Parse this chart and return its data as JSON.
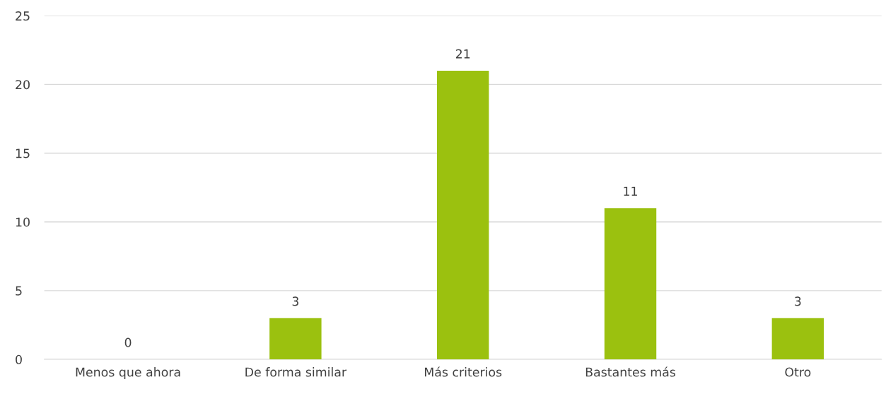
{
  "chart_data": {
    "type": "bar",
    "categories": [
      "Menos que ahora",
      "De forma similar",
      "Más criterios",
      "Bastantes más",
      "Otro"
    ],
    "values": [
      0,
      3,
      21,
      11,
      3
    ],
    "color": "#9bc10f",
    "ylim": [
      0,
      25
    ],
    "yticks": [
      0,
      5,
      10,
      15,
      20,
      25
    ],
    "grid": "y",
    "data_labels": true
  }
}
